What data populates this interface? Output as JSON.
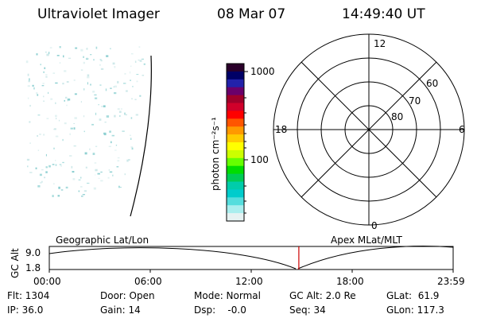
{
  "header": {
    "title": "Ultraviolet Imager",
    "date": "08 Mar 07",
    "time": "14:49:40 UT"
  },
  "colorbar": {
    "ticks": [
      "1000",
      "100"
    ],
    "label": "photon cm⁻²s⁻¹",
    "colors": [
      "#2a002a",
      "#000066",
      "#2222aa",
      "#6a006a",
      "#a0002a",
      "#d0002a",
      "#ff0000",
      "#ff5500",
      "#ff9900",
      "#ffcc00",
      "#ffff00",
      "#ccff00",
      "#66ff00",
      "#00dd00",
      "#00cc55",
      "#00ccaa",
      "#00cccc",
      "#55dddd",
      "#aaeeee",
      "#e6f2f2"
    ]
  },
  "polar_plot": {
    "mlt_labels": {
      "top": "12",
      "right": "6",
      "bottom": "0",
      "left": "18"
    },
    "lat_labels": [
      "60",
      "70",
      "80"
    ]
  },
  "timeline": {
    "y_axis_title": "GC Alt",
    "y_ticks": [
      "9.0",
      "1.8"
    ],
    "left_title": "Geographic Lat/Lon",
    "right_title": "Apex MLat/MLT",
    "x_ticks": [
      "00:00",
      "06:00",
      "12:00",
      "18:00",
      "23:59"
    ],
    "current_time_fraction": 0.618
  },
  "info": {
    "flt": "Flt: 1304",
    "ip": "IP: 36.0",
    "door": "Door: Open",
    "gain": "Gain: 14",
    "mode": "Mode: Normal",
    "dsp": "Dsp:    -0.0",
    "gc_alt": "GC Alt: 2.0 Re",
    "seq": "Seq: 34",
    "glat": "GLat:  61.9",
    "glon": "GLon: 117.3"
  }
}
